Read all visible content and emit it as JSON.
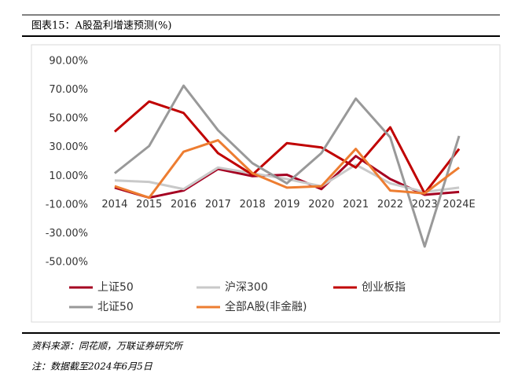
{
  "header": {
    "title": "图表15：A股盈利增速预测(%)"
  },
  "chart_data": {
    "type": "line",
    "categories": [
      "2014",
      "2015",
      "2016",
      "2017",
      "2018",
      "2019",
      "2020",
      "2021",
      "2022",
      "2023",
      "2024E"
    ],
    "series": [
      {
        "name": "上证50",
        "color": "#a50021",
        "values": [
          2,
          -5,
          0,
          15,
          10,
          11,
          1,
          24,
          8,
          -3,
          -1
        ]
      },
      {
        "name": "沪深300",
        "color": "#c9c9c9",
        "values": [
          7,
          6,
          1,
          16,
          12,
          8,
          3,
          18,
          5,
          -1,
          2
        ]
      },
      {
        "name": "创业板指",
        "color": "#c00000",
        "values": [
          41,
          62,
          54,
          26,
          11,
          33,
          30,
          16,
          44,
          -2,
          29
        ]
      },
      {
        "name": "北证50",
        "color": "#999999",
        "values": [
          12,
          31,
          73,
          42,
          19,
          5,
          26,
          64,
          37,
          -39,
          38
        ]
      },
      {
        "name": "全部A股(非金融)",
        "color": "#ed7d31",
        "values": [
          3,
          -5,
          27,
          35,
          12,
          2,
          3,
          29,
          0,
          -2,
          16
        ]
      }
    ],
    "ylim": [
      -50,
      90
    ],
    "yticks": [
      {
        "value": 90,
        "label": "90.00%"
      },
      {
        "value": 70,
        "label": "70.00%"
      },
      {
        "value": 50,
        "label": "50.00%"
      },
      {
        "value": 30,
        "label": "30.00%"
      },
      {
        "value": 10,
        "label": "10.00%"
      },
      {
        "value": -10,
        "label": "-10.00%"
      },
      {
        "value": -30,
        "label": "-30.00%"
      },
      {
        "value": -50,
        "label": "-50.00%"
      }
    ],
    "grid": false
  },
  "footer": {
    "source": "资料来源：同花顺，万联证券研究所",
    "note": "注：数据截至2024年6月5日"
  }
}
